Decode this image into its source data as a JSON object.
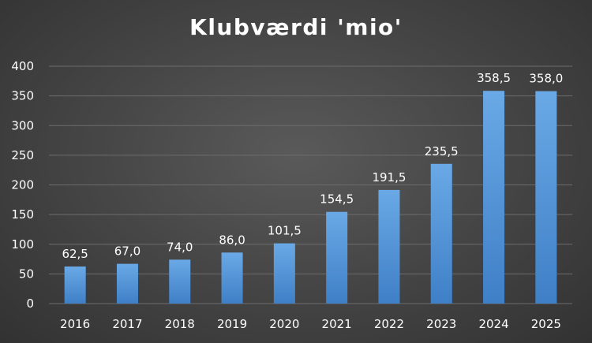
{
  "chart_data": {
    "type": "bar",
    "title": "Klubværdi 'mio'",
    "xlabel": "",
    "ylabel": "",
    "categories": [
      "2016",
      "2017",
      "2018",
      "2019",
      "2020",
      "2021",
      "2022",
      "2023",
      "2024",
      "2025"
    ],
    "values": [
      62.5,
      67.0,
      74.0,
      86.0,
      101.5,
      154.5,
      191.5,
      235.5,
      358.5,
      358.0
    ],
    "value_labels": [
      "62,5",
      "67,0",
      "74,0",
      "86,0",
      "101,5",
      "154,5",
      "191,5",
      "235,5",
      "358,5",
      "358,0"
    ],
    "ylim": [
      0,
      400
    ],
    "yticks": [
      0,
      50,
      100,
      150,
      200,
      250,
      300,
      350,
      400
    ],
    "grid": true,
    "legend": "none",
    "colors": {
      "bar_top": "#6aa9e6",
      "bar_bottom": "#3f7fc6",
      "grid": "#6c6c6c",
      "text": "#ffffff"
    }
  }
}
